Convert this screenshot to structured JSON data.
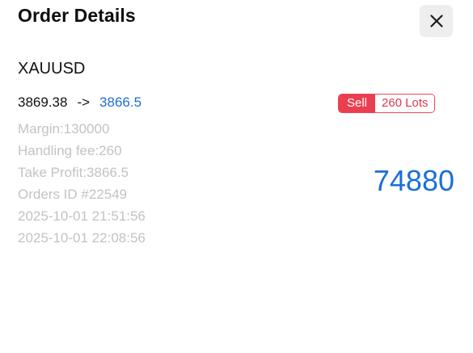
{
  "header": {
    "title": "Order Details",
    "close_icon": "close-icon"
  },
  "order": {
    "symbol": "XAUUSD",
    "open_price": "3869.38",
    "arrow": "->",
    "close_price": "3866.5",
    "side": "Sell",
    "lots": "260 Lots",
    "margin": "Margin:130000",
    "handling_fee": "Handling fee:260",
    "take_profit": "Take Profit:3866.5",
    "order_id": "Orders ID #22549",
    "open_time": "2025-10-01 21:51:56",
    "close_time": "2025-10-01 22:08:56",
    "profit": "74880"
  },
  "colors": {
    "accent_blue": "#1a6fd6",
    "sell_red": "#eb3e50",
    "muted_text": "#c3c3c6"
  }
}
